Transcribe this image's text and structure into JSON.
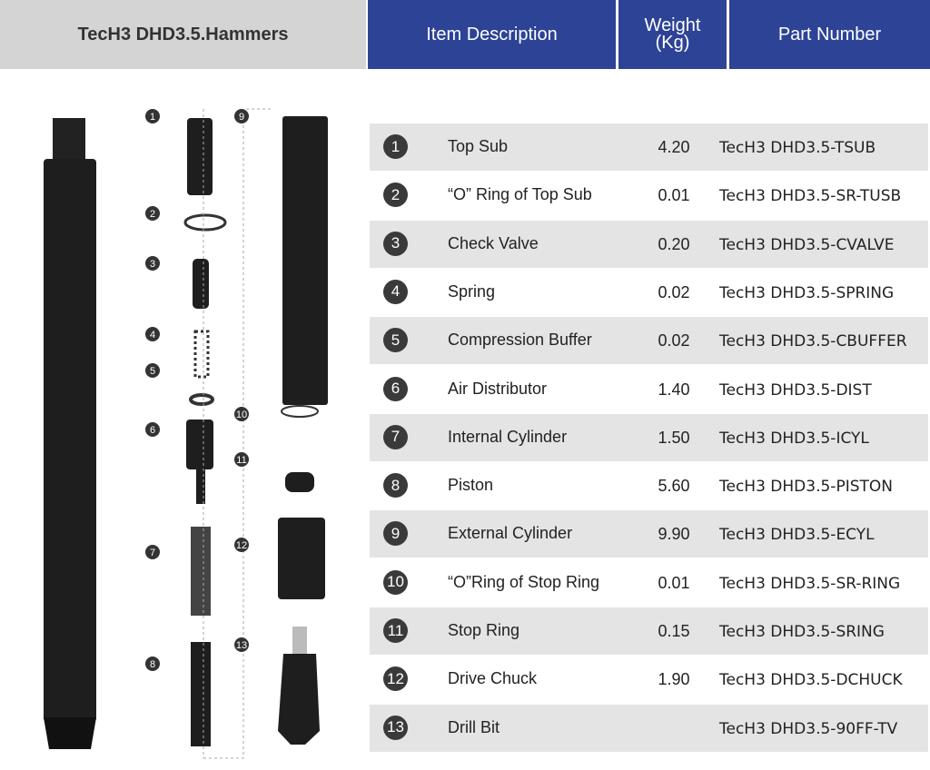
{
  "header": {
    "title": "TecH3 DHD3.5.Hammers",
    "item_description": "Item Description",
    "weight": "Weight (Kg)",
    "part_number": "Part Number"
  },
  "colors": {
    "header_blue": "#2d4396",
    "row_shade": "#e4e4e4"
  },
  "diagram_labels": [
    "1",
    "2",
    "3",
    "4",
    "5",
    "6",
    "7",
    "8",
    "9",
    "10",
    "11",
    "12",
    "13"
  ],
  "rows": [
    {
      "n": "1",
      "desc": "Top Sub",
      "weight": "4.20",
      "part": "TecH3 DHD3.5-TSUB"
    },
    {
      "n": "2",
      "desc": "“O” Ring of Top Sub",
      "weight": "0.01",
      "part": "TecH3 DHD3.5-SR-TUSB"
    },
    {
      "n": "3",
      "desc": "Check Valve",
      "weight": "0.20",
      "part": "TecH3 DHD3.5-CVALVE"
    },
    {
      "n": "4",
      "desc": "Spring",
      "weight": "0.02",
      "part": "TecH3 DHD3.5-SPRING"
    },
    {
      "n": "5",
      "desc": "Compression Buffer",
      "weight": "0.02",
      "part": "TecH3 DHD3.5-CBUFFER"
    },
    {
      "n": "6",
      "desc": "Air Distributor",
      "weight": "1.40",
      "part": "TecH3 DHD3.5-DIST"
    },
    {
      "n": "7",
      "desc": "Internal Cylinder",
      "weight": "1.50",
      "part": "TecH3 DHD3.5-ICYL"
    },
    {
      "n": "8",
      "desc": "Piston",
      "weight": "5.60",
      "part": "TecH3 DHD3.5-PISTON"
    },
    {
      "n": "9",
      "desc": "External Cylinder",
      "weight": "9.90",
      "part": "TecH3 DHD3.5-ECYL"
    },
    {
      "n": "10",
      "desc": "“O”Ring  of Stop Ring",
      "weight": "0.01",
      "part": "TecH3 DHD3.5-SR-RING"
    },
    {
      "n": "11",
      "desc": "Stop Ring",
      "weight": "0.15",
      "part": "TecH3 DHD3.5-SRING"
    },
    {
      "n": "12",
      "desc": "Drive Chuck",
      "weight": "1.90",
      "part": "TecH3 DHD3.5-DCHUCK"
    },
    {
      "n": "13",
      "desc": "Drill Bit",
      "weight": "",
      "part": "TecH3 DHD3.5-90FF-TV"
    }
  ]
}
